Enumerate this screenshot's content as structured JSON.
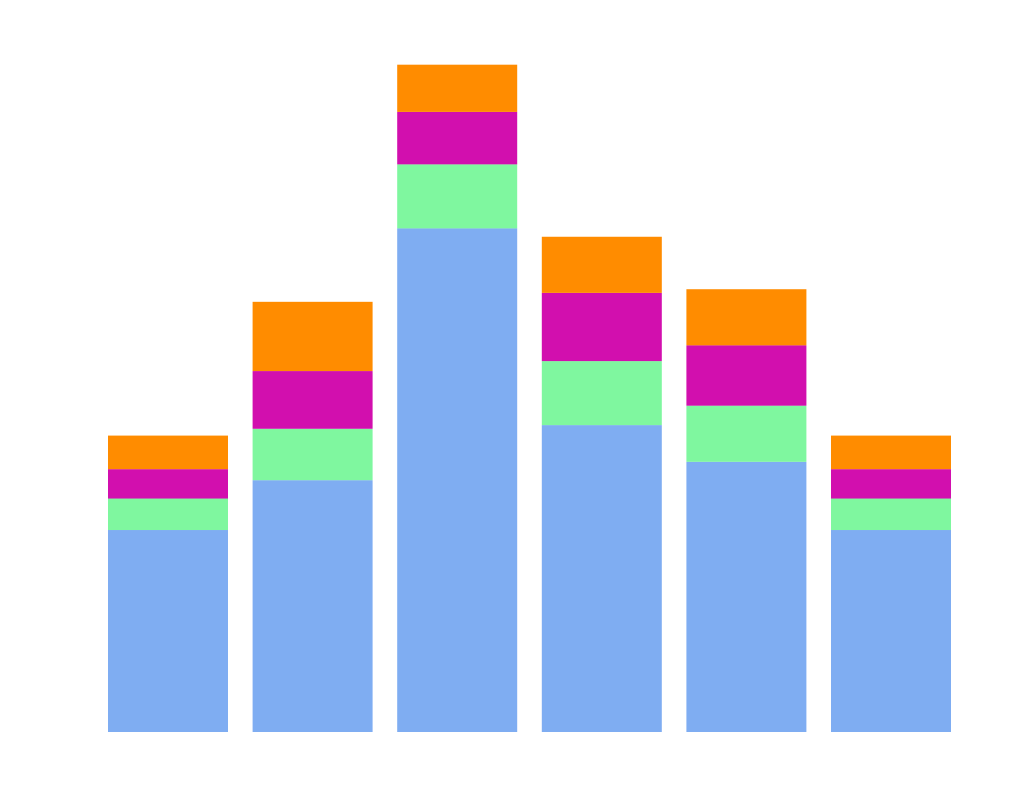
{
  "chart_data": {
    "type": "bar",
    "stacked": true,
    "categories": [
      "",
      "",
      "",
      "",
      "",
      ""
    ],
    "series": [
      {
        "color": "#7fadf2",
        "values": [
          3.85,
          4.8,
          9.6,
          5.85,
          5.15,
          3.85
        ]
      },
      {
        "color": "#7ff79f",
        "values": [
          0.6,
          0.98,
          1.22,
          1.22,
          1.07,
          0.6
        ]
      },
      {
        "color": "#d20fae",
        "values": [
          0.56,
          1.1,
          1.0,
          1.3,
          1.15,
          0.56
        ]
      },
      {
        "color": "#ff8c00",
        "values": [
          0.64,
          1.32,
          0.9,
          1.07,
          1.07,
          0.64
        ]
      }
    ],
    "ylim": [
      0,
      13
    ],
    "grid": false,
    "legend": "none",
    "title": "",
    "xlabel": "",
    "ylabel": ""
  }
}
